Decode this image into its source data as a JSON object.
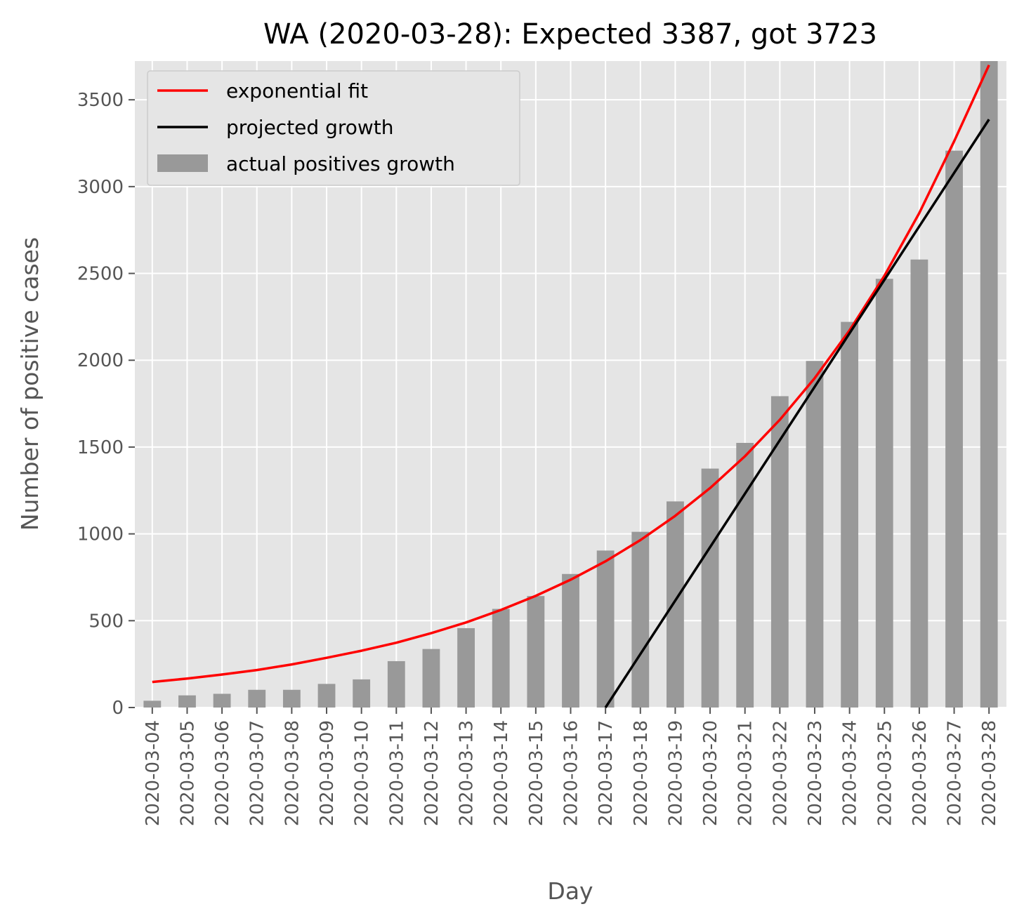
{
  "chart_data": {
    "type": "bar",
    "title": "WA (2020-03-28): Expected 3387, got 3723",
    "xlabel": "Day",
    "ylabel": "Number of positive cases",
    "ylim": [
      0,
      3723
    ],
    "yticks": [
      0,
      500,
      1000,
      1500,
      2000,
      2500,
      3000,
      3500
    ],
    "grid": true,
    "legend_position": "top-left",
    "categories": [
      "2020-03-04",
      "2020-03-05",
      "2020-03-06",
      "2020-03-07",
      "2020-03-08",
      "2020-03-09",
      "2020-03-10",
      "2020-03-11",
      "2020-03-12",
      "2020-03-13",
      "2020-03-14",
      "2020-03-15",
      "2020-03-16",
      "2020-03-17",
      "2020-03-18",
      "2020-03-19",
      "2020-03-20",
      "2020-03-21",
      "2020-03-22",
      "2020-03-23",
      "2020-03-24",
      "2020-03-25",
      "2020-03-26",
      "2020-03-27",
      "2020-03-28"
    ],
    "series": [
      {
        "name": "actual positives growth",
        "kind": "bar",
        "color": "#999999",
        "values": [
          39,
          70,
          79,
          102,
          102,
          136,
          162,
          267,
          337,
          457,
          568,
          642,
          769,
          904,
          1012,
          1187,
          1376,
          1524,
          1793,
          1996,
          2221,
          2469,
          2580,
          3207,
          3723
        ]
      },
      {
        "name": "exponential fit",
        "kind": "line",
        "color": "#ff0000",
        "values": [
          147,
          167,
          190,
          216,
          248,
          286,
          327,
          373,
          428,
          490,
          562,
          643,
          736,
          842,
          964,
          1104,
          1264,
          1447,
          1657,
          1897,
          2172,
          2487,
          2848,
          3261,
          3700
        ]
      },
      {
        "name": "projected growth",
        "kind": "line",
        "color": "#000000",
        "x_start": "2020-03-17",
        "x_end": "2020-03-28",
        "y_start": 0,
        "y_end": 3387
      }
    ]
  }
}
